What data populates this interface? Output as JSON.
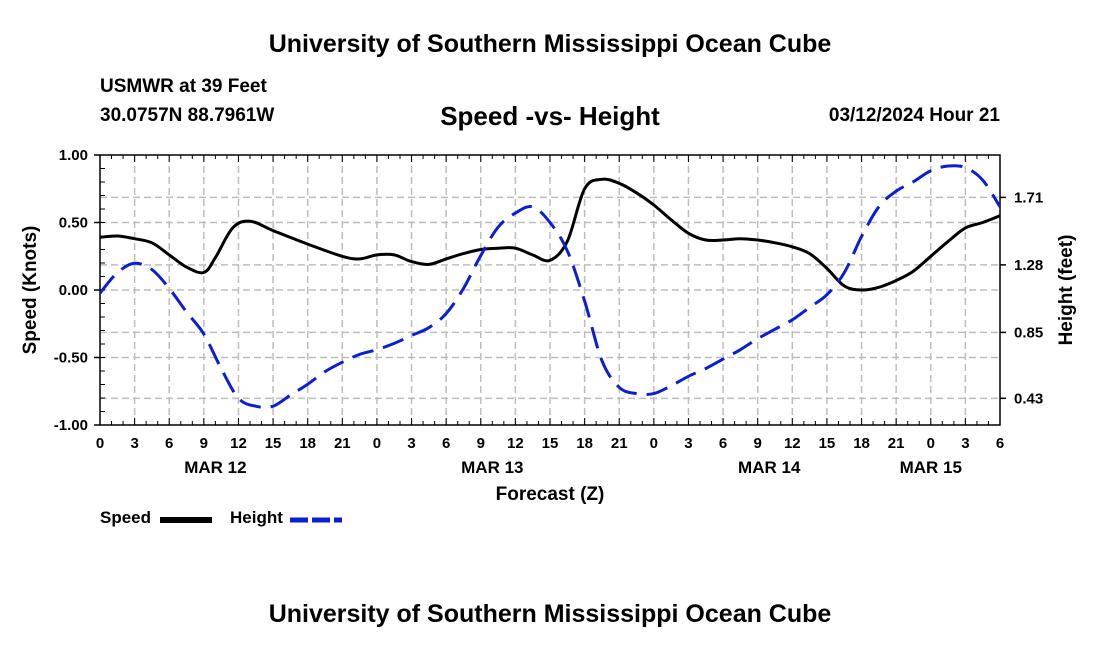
{
  "header": {
    "title": "University of Southern Mississippi Ocean Cube",
    "station": "USMWR at 39 Feet",
    "coords": "30.0757N  88.7961W",
    "subtitle": "Speed -vs- Height",
    "datetime": "03/12/2024 Hour 21"
  },
  "footer": {
    "title": "University of Southern Mississippi Ocean Cube"
  },
  "legend": {
    "speed": "Speed",
    "height": "Height"
  },
  "colors": {
    "speed": "#000000",
    "height": "#0a1ed2",
    "grid": "#bdbdbd"
  },
  "chart_data": {
    "type": "line",
    "xlabel": "Forecast (Z)",
    "x_tick_labels": [
      "0",
      "3",
      "6",
      "9",
      "12",
      "15",
      "18",
      "21",
      "0",
      "3",
      "6",
      "9",
      "12",
      "15",
      "18",
      "21",
      "0",
      "3",
      "6",
      "9",
      "12",
      "15",
      "18",
      "21",
      "0",
      "3",
      "6"
    ],
    "day_labels": [
      {
        "label": "MAR 12",
        "x": 10
      },
      {
        "label": "MAR 13",
        "x": 34
      },
      {
        "label": "MAR 14",
        "x": 58
      },
      {
        "label": "MAR 15",
        "x": 72
      }
    ],
    "xlim": [
      0,
      78
    ],
    "left_axis": {
      "label": "Speed (Knots)",
      "ylim": [
        -1.0,
        1.0
      ],
      "ticks": [
        1.0,
        0.5,
        0.0,
        -0.5,
        -1.0
      ],
      "tick_labels": [
        "1.00",
        "0.50",
        "0.00",
        "-0.50",
        "-1.00"
      ]
    },
    "right_axis": {
      "label": "Height (feet)",
      "ylim": [
        0.26,
        1.98
      ],
      "ticks": [
        1.71,
        1.28,
        0.85,
        0.43
      ],
      "tick_labels": [
        "1.71",
        "1.28",
        "0.85",
        "0.43"
      ]
    },
    "series": [
      {
        "name": "Speed",
        "axis": "left",
        "style": "solid",
        "x": [
          0,
          1.5,
          3,
          4.5,
          6,
          7.5,
          9,
          10,
          11.5,
          13,
          15,
          18,
          21,
          22.5,
          24,
          25.5,
          27,
          28.5,
          30,
          31.5,
          33,
          34.5,
          36,
          37.5,
          39,
          40.5,
          42,
          43.5,
          45,
          46.5,
          48,
          49.5,
          51,
          52.5,
          54,
          55.5,
          57,
          58.5,
          60,
          61.5,
          63,
          64.5,
          66,
          67.5,
          69,
          70.5,
          72,
          73.5,
          75,
          76.5,
          78
        ],
        "y": [
          0.39,
          0.4,
          0.38,
          0.35,
          0.26,
          0.17,
          0.13,
          0.24,
          0.46,
          0.51,
          0.44,
          0.34,
          0.25,
          0.23,
          0.26,
          0.26,
          0.21,
          0.19,
          0.23,
          0.27,
          0.3,
          0.31,
          0.31,
          0.26,
          0.22,
          0.36,
          0.75,
          0.82,
          0.79,
          0.72,
          0.63,
          0.52,
          0.42,
          0.37,
          0.37,
          0.38,
          0.37,
          0.35,
          0.32,
          0.27,
          0.16,
          0.03,
          0.0,
          0.02,
          0.07,
          0.14,
          0.25,
          0.36,
          0.46,
          0.5,
          0.55
        ]
      },
      {
        "name": "Height",
        "axis": "right",
        "style": "dashed",
        "x": [
          0,
          1.5,
          3,
          4.5,
          6,
          7.5,
          9,
          10.5,
          12,
          13.5,
          15,
          16.5,
          18,
          19.5,
          21,
          22.5,
          24,
          25.5,
          27,
          28.5,
          30,
          31.5,
          33,
          34.5,
          36,
          37.5,
          39,
          40.5,
          42,
          43.5,
          45,
          46.5,
          48,
          49.5,
          51,
          52.5,
          54,
          55.5,
          57,
          58.5,
          60,
          61.5,
          63,
          64.5,
          66,
          67.5,
          69,
          70.5,
          72,
          73.5,
          75,
          76.5,
          78
        ],
        "y": [
          1.1,
          1.23,
          1.29,
          1.25,
          1.13,
          0.98,
          0.84,
          0.62,
          0.43,
          0.38,
          0.38,
          0.45,
          0.52,
          0.6,
          0.66,
          0.71,
          0.74,
          0.78,
          0.83,
          0.88,
          0.97,
          1.13,
          1.34,
          1.52,
          1.61,
          1.65,
          1.55,
          1.37,
          1.05,
          0.67,
          0.5,
          0.46,
          0.46,
          0.51,
          0.57,
          0.62,
          0.68,
          0.74,
          0.81,
          0.87,
          0.93,
          1.01,
          1.09,
          1.23,
          1.46,
          1.65,
          1.75,
          1.81,
          1.88,
          1.91,
          1.9,
          1.82,
          1.65
        ]
      }
    ]
  }
}
